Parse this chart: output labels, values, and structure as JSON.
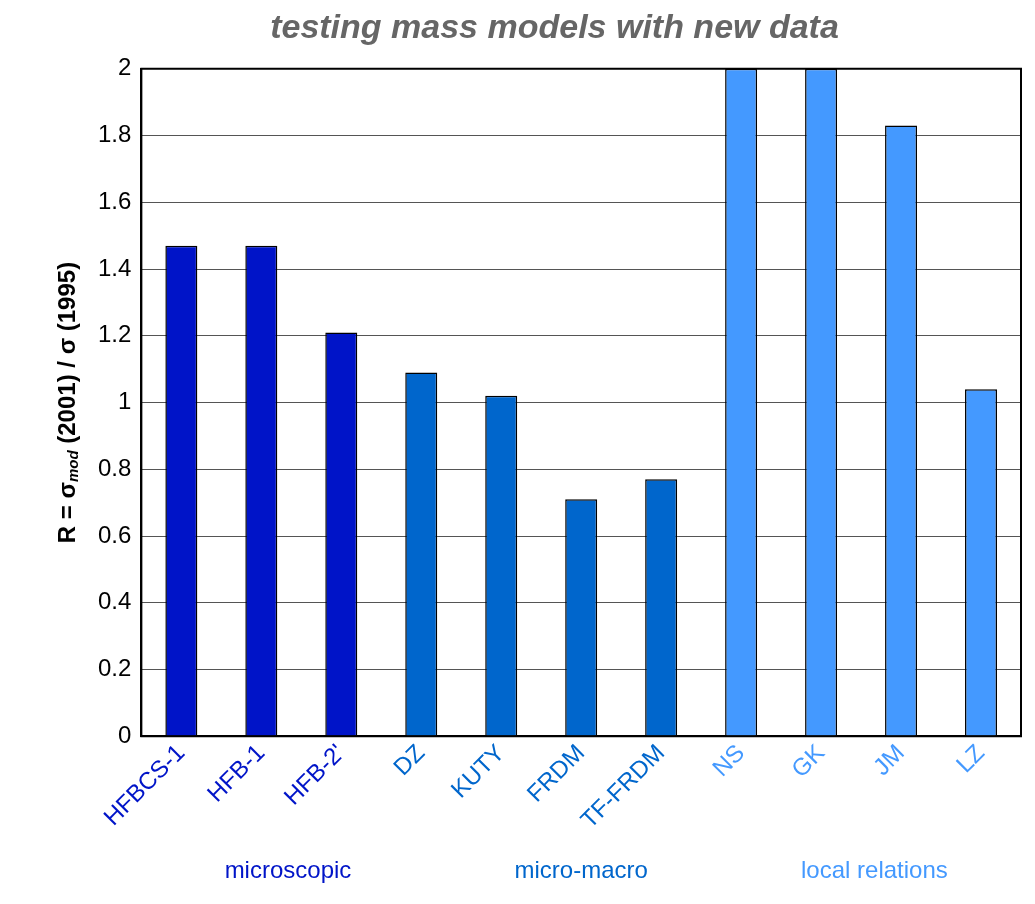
{
  "chart_data": {
    "type": "bar",
    "title": "testing mass models with new data",
    "ylabel": "R = σ$_{mod}$ (2001) / σ (1995)",
    "categories": [
      "HFBCS-1",
      "HFB-1",
      "HFB-2'",
      "DZ",
      "KUTY",
      "FRDM",
      "TF-FRDM",
      "NS",
      "GK",
      "JM",
      "LZ"
    ],
    "values": [
      1.47,
      1.47,
      1.21,
      1.09,
      1.02,
      0.71,
      0.77,
      2.0,
      2.0,
      1.83,
      1.04
    ],
    "colors": [
      "#0014c8",
      "#0014c8",
      "#0014c8",
      "#0066cc",
      "#0066cc",
      "#0066cc",
      "#0066cc",
      "#4499ff",
      "#4499ff",
      "#4499ff",
      "#4499ff"
    ],
    "ylim": [
      0,
      2
    ],
    "yticks": [
      0,
      0.2,
      0.4,
      0.6,
      0.8,
      1,
      1.2,
      1.4,
      1.6,
      1.8,
      2
    ],
    "grid": "y",
    "legend": false,
    "annotations": [
      "microscopic",
      "micro-macro",
      "local relations"
    ]
  }
}
